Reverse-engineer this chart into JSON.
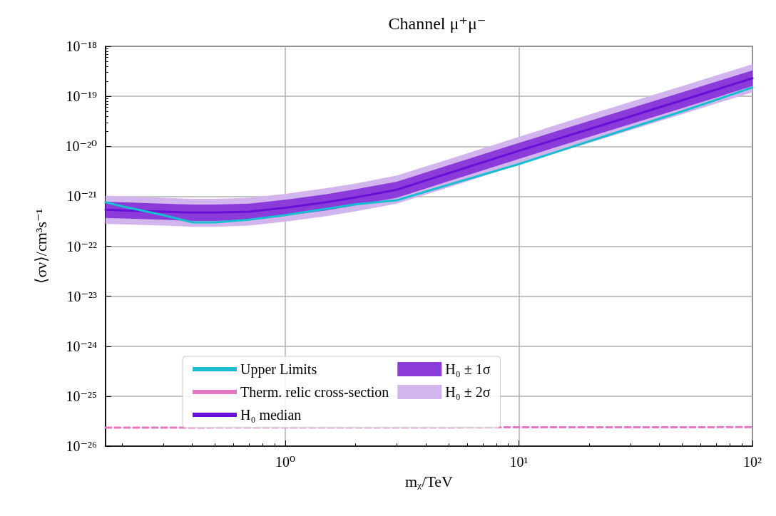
{
  "chart_data": {
    "type": "line",
    "title": "Channel μ⁺μ⁻",
    "xlabel": "mᵪ/TeV",
    "ylabel": "⟨σν⟩/cm³s⁻¹",
    "log": "xy",
    "grid": true,
    "legend": "bottom",
    "marker": "none",
    "x": [
      0.17,
      0.2,
      0.3,
      0.4,
      0.5,
      0.7,
      1,
      1.5,
      2,
      3,
      5,
      10,
      20,
      50,
      100
    ],
    "xlim": [
      0.17,
      100
    ],
    "xticks": [
      {
        "value": 1,
        "label": "10⁰"
      },
      {
        "value": 10,
        "label": "10¹"
      },
      {
        "value": 100,
        "label": "10²"
      }
    ],
    "ylim": [
      1e-26,
      1e-18
    ],
    "yticks": [
      {
        "value": 1e-26,
        "label": "10⁻²⁶"
      },
      {
        "value": 1e-25,
        "label": "10⁻²⁵"
      },
      {
        "value": 1e-24,
        "label": "10⁻²⁴"
      },
      {
        "value": 1e-23,
        "label": "10⁻²³"
      },
      {
        "value": 1e-22,
        "label": "10⁻²²"
      },
      {
        "value": 1e-21,
        "label": "10⁻²¹"
      },
      {
        "value": 1e-20,
        "label": "10⁻²⁰"
      },
      {
        "value": 1e-19,
        "label": "10⁻¹⁹"
      },
      {
        "value": 1e-18,
        "label": "10⁻¹⁸"
      }
    ],
    "series": [
      {
        "name": "H₀ ± 2σ",
        "color": "#d3b5ee",
        "values": [
          null,
          null,
          null,
          null,
          null,
          null,
          null,
          null,
          null,
          null,
          null,
          null,
          null,
          null,
          null
        ],
        "lower": [
          2.8e-22,
          2.75e-22,
          2.6e-22,
          2.45e-22,
          2.45e-22,
          2.6e-22,
          3.1e-22,
          4e-22,
          5e-22,
          7.1e-22,
          1.5e-21,
          4.3e-21,
          1.17e-20,
          4.4e-20,
          1.2e-19
        ],
        "upper": [
          1.02e-21,
          1e-21,
          9.3e-22,
          8.9e-22,
          8.9e-22,
          9.3e-22,
          1.12e-21,
          1.45e-21,
          1.8e-21,
          2.6e-21,
          5.5e-21,
          1.55e-20,
          4.3e-20,
          1.6e-19,
          4.4e-19
        ]
      },
      {
        "name": "H₀ ± 1σ",
        "color": "#8a3bd9",
        "values": [
          null,
          null,
          null,
          null,
          null,
          null,
          null,
          null,
          null,
          null,
          null,
          null,
          null,
          null,
          null
        ],
        "lower": [
          3.7e-22,
          3.6e-22,
          3.4e-22,
          3.2e-22,
          3.2e-22,
          3.4e-22,
          4.1e-22,
          5.2e-22,
          6.6e-22,
          9.3e-22,
          2e-21,
          5.6e-21,
          1.55e-20,
          5.8e-20,
          1.6e-19
        ],
        "upper": [
          7.8e-22,
          7.6e-22,
          7.1e-22,
          6.8e-22,
          6.8e-22,
          7.1e-22,
          8.5e-22,
          1.1e-21,
          1.38e-21,
          1.95e-21,
          4.2e-21,
          1.17e-20,
          3.2e-20,
          1.2e-19,
          3.3e-19
        ]
      },
      {
        "name": "H₀ median",
        "color": "#6610d8",
        "values": [
          5.4e-22,
          5.2e-22,
          4.9e-22,
          4.7e-22,
          4.7e-22,
          4.9e-22,
          5.9e-22,
          7.6e-22,
          9.5e-22,
          1.35e-21,
          2.9e-21,
          8.1e-21,
          2.2e-20,
          8.3e-20,
          2.3e-19
        ]
      },
      {
        "name": "Upper Limits",
        "color": "#17becf",
        "values": [
          7.6e-22,
          6.3e-22,
          4.2e-22,
          3e-22,
          3e-22,
          3.4e-22,
          4.2e-22,
          5.6e-22,
          6.9e-22,
          8.3e-22,
          1.7e-21,
          4.4e-21,
          1.26e-20,
          5e-20,
          1.5e-19
        ]
      },
      {
        "name": "Therm. relic cross-section",
        "color": "#e377c2",
        "line_style": "dashed",
        "x": [
          0.17,
          100
        ],
        "values": [
          2.35e-26,
          2.4e-26
        ]
      }
    ]
  }
}
